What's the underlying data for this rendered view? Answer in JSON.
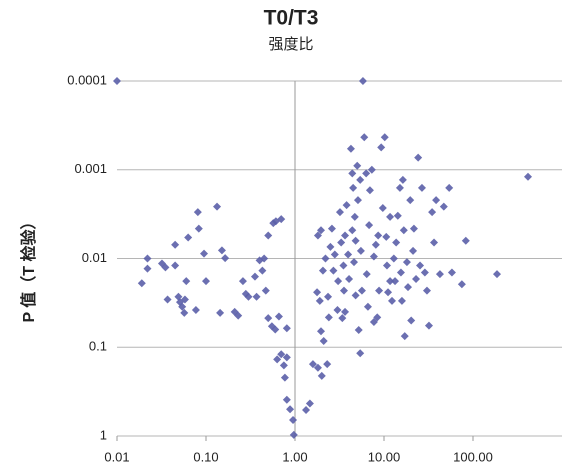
{
  "chart_data": {
    "type": "scatter",
    "title": "T0/T3",
    "subtitle": "强度比",
    "y_label": "P 值（T 检验）",
    "x_log": true,
    "y_log": true,
    "y_inverted": true,
    "grid": true,
    "yaxis_crosses_x": 1,
    "color": "#5b5fa8",
    "xlim": [
      0.01,
      1000
    ],
    "ylim": [
      0.0001,
      1
    ],
    "xticks": [
      0.01,
      {
        "value": 0.1,
        "label": "0.10"
      },
      {
        "value": 1,
        "label": "1.00"
      },
      {
        "value": 10,
        "label": "10.00"
      },
      {
        "value": 100,
        "label": "100.00"
      }
    ],
    "yticks": [
      0.0001,
      0.001,
      0.01,
      0.1,
      1
    ],
    "x": [
      0.01,
      5.8,
      0.019,
      0.022,
      0.022,
      0.032,
      0.035,
      0.037,
      0.045,
      0.045,
      0.049,
      0.051,
      0.054,
      0.057,
      0.058,
      0.06,
      0.063,
      0.077,
      0.081,
      0.083,
      0.095,
      0.1,
      0.133,
      0.151,
      0.164,
      0.144,
      0.21,
      0.23,
      0.26,
      0.28,
      0.3,
      0.355,
      0.37,
      0.4,
      0.43,
      0.45,
      0.47,
      0.5,
      0.5,
      0.57,
      0.61,
      0.7,
      0.55,
      0.6,
      0.66,
      0.81,
      0.63,
      0.7,
      0.75,
      0.81,
      0.77,
      0.81,
      0.88,
      0.95,
      0.97,
      1.33,
      1.47,
      1.59,
      1.81,
      2.0,
      1.96,
      2.1,
      2.3,
      1.77,
      1.9,
      1.81,
      1.96,
      2.06,
      2.2,
      2.35,
      2.4,
      2.6,
      2.7,
      2.8,
      3.0,
      3.05,
      3.2,
      3.3,
      3.5,
      3.55,
      3.65,
      3.65,
      3.8,
      3.95,
      4.05,
      4.25,
      4.4,
      4.4,
      4.5,
      4.6,
      4.7,
      4.8,
      4.8,
      5.0,
      5.1,
      5.2,
      5.4,
      5.4,
      5.5,
      5.65,
      6.0,
      6.3,
      6.4,
      6.6,
      6.8,
      6.95,
      7.3,
      7.7,
      8.1,
      8.4,
      8.6,
      8.8,
      9.3,
      9.7,
      10.2,
      10.6,
      10.8,
      11.1,
      11.7,
      12.3,
      12.9,
      13.3,
      13.7,
      14.3,
      15.1,
      15.5,
      15.9,
      16.3,
      16.7,
      17.1,
      18.1,
      18.6,
      19.7,
      20.2,
      21.2,
      21.7,
      22.9,
      24.2,
      25.4,
      26.7,
      28.8,
      30.4,
      32,
      34.7,
      36.5,
      38.5,
      42.5,
      47,
      54,
      58,
      75,
      83,
      186,
      415,
      2.5,
      3.4,
      7.7,
      11.7
    ],
    "y": [
      0.0001,
      0.0001,
      0.019,
      0.013,
      0.01,
      0.0114,
      0.0126,
      0.029,
      0.007,
      0.012,
      0.027,
      0.031,
      0.035,
      0.041,
      0.029,
      0.018,
      0.0058,
      0.038,
      0.003,
      0.0046,
      0.0088,
      0.018,
      0.0026,
      0.0081,
      0.0099,
      0.041,
      0.04,
      0.044,
      0.018,
      0.025,
      0.027,
      0.016,
      0.027,
      0.0105,
      0.0137,
      0.01,
      0.023,
      0.047,
      0.0055,
      0.004,
      0.0038,
      0.0036,
      0.058,
      0.063,
      0.045,
      0.061,
      0.137,
      0.12,
      0.16,
      0.13,
      0.22,
      0.39,
      0.5,
      0.66,
      0.97,
      0.51,
      0.43,
      0.155,
      0.17,
      0.21,
      0.066,
      0.085,
      0.155,
      0.024,
      0.03,
      0.0055,
      0.0048,
      0.0137,
      0.01,
      0.027,
      0.046,
      0.0046,
      0.0137,
      0.009,
      0.038,
      0.018,
      0.003,
      0.0066,
      0.012,
      0.023,
      0.0055,
      0.04,
      0.0025,
      0.009,
      0.017,
      0.00058,
      0.0011,
      0.0048,
      0.0016,
      0.011,
      0.0034,
      0.026,
      0.0063,
      0.0009,
      0.0022,
      0.064,
      0.117,
      0.0013,
      0.0082,
      0.023,
      0.00043,
      0.0011,
      0.015,
      0.035,
      0.0042,
      0.0017,
      0.001,
      0.0095,
      0.007,
      0.046,
      0.0055,
      0.023,
      0.00056,
      0.0027,
      0.00043,
      0.0057,
      0.012,
      0.024,
      0.0034,
      0.03,
      0.01,
      0.018,
      0.0066,
      0.0033,
      0.0016,
      0.0144,
      0.03,
      0.0013,
      0.0048,
      0.075,
      0.011,
      0.021,
      0.0022,
      0.05,
      0.0082,
      0.0046,
      0.017,
      0.00073,
      0.012,
      0.0016,
      0.0144,
      0.023,
      0.057,
      0.003,
      0.0066,
      0.0022,
      0.015,
      0.0026,
      0.0016,
      0.0144,
      0.0195,
      0.0063,
      0.015,
      0.0012,
      0.0074,
      0.047,
      0.052,
      0.018
    ]
  }
}
